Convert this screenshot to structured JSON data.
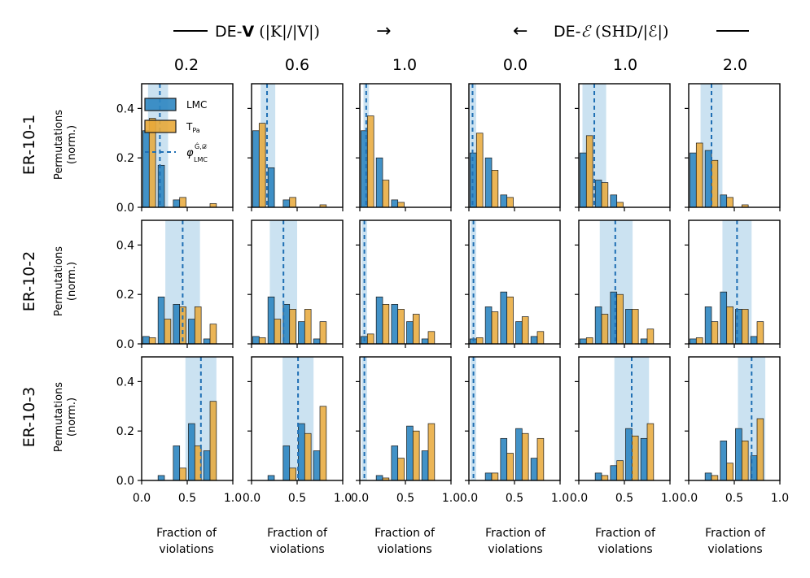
{
  "figure": {
    "header_left": {
      "prefix": "DE-",
      "bold": "V",
      "formula": "(|K|/|V|)",
      "arrow": "→"
    },
    "header_right": {
      "arrow": "←",
      "prefix": "DE-",
      "script": "ℰ",
      "formula": "(SHD/|ℰ|)"
    },
    "column_titles": [
      "0.2",
      "0.6",
      "1.0",
      "0.0",
      "1.0",
      "2.0"
    ],
    "row_titles": [
      "ER-10-1",
      "ER-10-2",
      "ER-10-3"
    ],
    "ylabel_line1": "Permutations",
    "ylabel_line2": "(norm.)",
    "xlabel_line1": "Fraction of",
    "xlabel_line2": "violations",
    "x_ticks": [
      "0.0",
      "0.5",
      "1.0"
    ],
    "y_ticks": [
      "0.0",
      "0.2",
      "0.4"
    ]
  },
  "legend": {
    "lmc": "LMC",
    "tpa_main": "T",
    "tpa_sub": "Pa",
    "phi_main": "φ",
    "phi_sup": "Ĝ,𝒟",
    "phi_sub": "LMC"
  },
  "colors": {
    "lmc": "#2e86c1",
    "tpa": "#e8a838",
    "phi": "#1f6fb4",
    "band": "#a9cfe8"
  },
  "chart_data": {
    "type": "bar",
    "xlim": [
      0,
      1
    ],
    "ylim": [
      0,
      0.5
    ],
    "bin_centers": [
      0.083,
      0.25,
      0.417,
      0.583,
      0.75,
      0.917
    ],
    "panels": [
      [
        {
          "lmc": [
            0.31,
            0.17,
            0.03,
            0.0,
            0.0,
            0.0
          ],
          "tpa": [
            0.36,
            0.0,
            0.04,
            0.0,
            0.015,
            0.0
          ],
          "phi": 0.2,
          "band": [
            0.07,
            0.29
          ]
        },
        {
          "lmc": [
            0.31,
            0.16,
            0.03,
            0.0,
            0.0,
            0.0
          ],
          "tpa": [
            0.34,
            0.0,
            0.04,
            0.0,
            0.01,
            0.0
          ],
          "phi": 0.17,
          "band": [
            0.1,
            0.26
          ]
        },
        {
          "lmc": [
            0.31,
            0.2,
            0.03,
            0.0,
            0.0,
            0.0
          ],
          "tpa": [
            0.37,
            0.11,
            0.02,
            0.0,
            0.0,
            0.0
          ],
          "phi": 0.07,
          "band": [
            0.04,
            0.1
          ]
        },
        {
          "lmc": [
            0.22,
            0.2,
            0.05,
            0.0,
            0.0,
            0.0
          ],
          "tpa": [
            0.3,
            0.15,
            0.04,
            0.0,
            0.0,
            0.0
          ],
          "phi": 0.04,
          "band": [
            0.01,
            0.08
          ]
        },
        {
          "lmc": [
            0.22,
            0.11,
            0.05,
            0.0,
            0.0,
            0.0
          ],
          "tpa": [
            0.29,
            0.1,
            0.02,
            0.0,
            0.0,
            0.0
          ],
          "phi": 0.17,
          "band": [
            0.04,
            0.3
          ]
        },
        {
          "lmc": [
            0.22,
            0.23,
            0.05,
            0.0,
            0.0,
            0.0
          ],
          "tpa": [
            0.26,
            0.19,
            0.04,
            0.01,
            0.0,
            0.0
          ],
          "phi": 0.25,
          "band": [
            0.13,
            0.37
          ]
        }
      ],
      [
        {
          "lmc": [
            0.03,
            0.19,
            0.16,
            0.1,
            0.02,
            0.0
          ],
          "tpa": [
            0.025,
            0.1,
            0.15,
            0.15,
            0.08,
            0.0
          ],
          "phi": 0.45,
          "band": [
            0.26,
            0.64
          ]
        },
        {
          "lmc": [
            0.03,
            0.19,
            0.16,
            0.09,
            0.02,
            0.0
          ],
          "tpa": [
            0.025,
            0.1,
            0.14,
            0.14,
            0.09,
            0.0
          ],
          "phi": 0.35,
          "band": [
            0.2,
            0.5
          ]
        },
        {
          "lmc": [
            0.03,
            0.19,
            0.16,
            0.09,
            0.02,
            0.0
          ],
          "tpa": [
            0.04,
            0.16,
            0.14,
            0.12,
            0.05,
            0.0
          ],
          "phi": 0.05,
          "band": [
            0.02,
            0.08
          ]
        },
        {
          "lmc": [
            0.02,
            0.15,
            0.21,
            0.09,
            0.03,
            0.0
          ],
          "tpa": [
            0.025,
            0.13,
            0.19,
            0.11,
            0.05,
            0.0
          ],
          "phi": 0.05,
          "band": [
            0.02,
            0.08
          ]
        },
        {
          "lmc": [
            0.02,
            0.15,
            0.21,
            0.14,
            0.02,
            0.0
          ],
          "tpa": [
            0.025,
            0.12,
            0.2,
            0.14,
            0.06,
            0.0
          ],
          "phi": 0.4,
          "band": [
            0.23,
            0.59
          ]
        },
        {
          "lmc": [
            0.02,
            0.15,
            0.21,
            0.14,
            0.03,
            0.0
          ],
          "tpa": [
            0.025,
            0.09,
            0.15,
            0.14,
            0.09,
            0.0
          ],
          "phi": 0.53,
          "band": [
            0.37,
            0.69
          ]
        }
      ],
      [
        {
          "lmc": [
            0.0,
            0.02,
            0.14,
            0.23,
            0.12,
            0.0
          ],
          "tpa": [
            0.0,
            0.0,
            0.05,
            0.14,
            0.32,
            0.0
          ],
          "phi": 0.65,
          "band": [
            0.48,
            0.82
          ]
        },
        {
          "lmc": [
            0.0,
            0.02,
            0.14,
            0.23,
            0.12,
            0.0
          ],
          "tpa": [
            0.0,
            0.0,
            0.05,
            0.19,
            0.3,
            0.0
          ],
          "phi": 0.51,
          "band": [
            0.34,
            0.68
          ]
        },
        {
          "lmc": [
            0.0,
            0.02,
            0.14,
            0.22,
            0.12,
            0.0
          ],
          "tpa": [
            0.0,
            0.01,
            0.09,
            0.2,
            0.23,
            0.0
          ],
          "phi": 0.05,
          "band": [
            0.02,
            0.08
          ]
        },
        {
          "lmc": [
            0.0,
            0.03,
            0.17,
            0.21,
            0.09,
            0.0
          ],
          "tpa": [
            0.0,
            0.03,
            0.11,
            0.19,
            0.17,
            0.0
          ],
          "phi": 0.05,
          "band": [
            0.02,
            0.08
          ]
        },
        {
          "lmc": [
            0.0,
            0.03,
            0.06,
            0.21,
            0.17,
            0.0
          ],
          "tpa": [
            0.0,
            0.02,
            0.08,
            0.18,
            0.23,
            0.0
          ],
          "phi": 0.58,
          "band": [
            0.39,
            0.77
          ]
        },
        {
          "lmc": [
            0.0,
            0.03,
            0.16,
            0.21,
            0.1,
            0.0
          ],
          "tpa": [
            0.0,
            0.02,
            0.07,
            0.16,
            0.25,
            0.0
          ],
          "phi": 0.69,
          "band": [
            0.54,
            0.84
          ]
        }
      ]
    ]
  }
}
